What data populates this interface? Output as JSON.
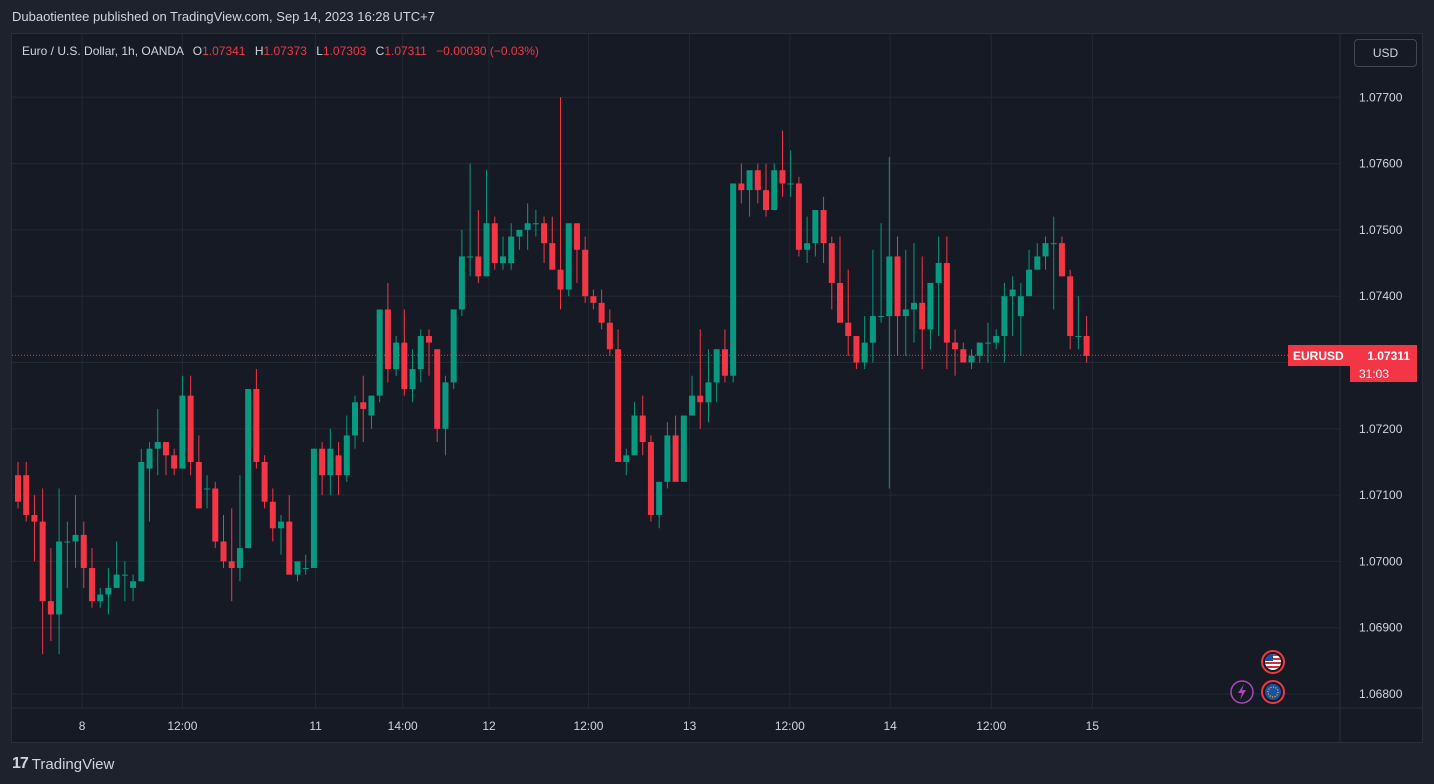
{
  "header": {
    "published": "Dubaotientee published on TradingView.com, Sep 14, 2023 16:28 UTC+7"
  },
  "legend": {
    "symbol": "Euro / U.S. Dollar, 1h, OANDA",
    "o_key": "O",
    "o_val": "1.07341",
    "h_key": "H",
    "h_val": "1.07373",
    "l_key": "L",
    "l_val": "1.07303",
    "c_key": "C",
    "c_val": "1.07311",
    "change": "−0.00030 (−0.03%)"
  },
  "currency_button": "USD",
  "price_label": {
    "symbol": "EURUSD",
    "price": "1.07311",
    "countdown": "31:03"
  },
  "footer": {
    "brand": "TradingView",
    "logo_glyph": "17"
  },
  "colors": {
    "up": "#089981",
    "down": "#f23645",
    "background": "#161a25",
    "grid": "#242832",
    "text": "#d1d4dc"
  },
  "icons": [
    "us-flag-event-icon",
    "lightning-event-icon",
    "eu-flag-event-icon"
  ],
  "chart_data": {
    "type": "candlestick",
    "title": "Euro / U.S. Dollar, 1h, OANDA",
    "ylim": [
      1.0676,
      1.078
    ],
    "y_ticks": [
      "1.07700",
      "1.07600",
      "1.07500",
      "1.07400",
      "1.07300",
      "1.07200",
      "1.07100",
      "1.07000",
      "1.06900",
      "1.06800"
    ],
    "x_ticks": [
      {
        "label": "8",
        "index": 7.8
      },
      {
        "label": "12:00",
        "index": 20
      },
      {
        "label": "11",
        "index": 36.2
      },
      {
        "label": "14:00",
        "index": 46.8
      },
      {
        "label": "12",
        "index": 57.3
      },
      {
        "label": "12:00",
        "index": 69.4
      },
      {
        "label": "13",
        "index": 81.7
      },
      {
        "label": "12:00",
        "index": 93.9
      },
      {
        "label": "14",
        "index": 106.1
      },
      {
        "label": "12:00",
        "index": 118.4
      },
      {
        "label": "15",
        "index": 130.7
      }
    ],
    "last_price": 1.07311,
    "grid": true,
    "candles": [
      [
        1.0713,
        1.0715,
        1.0708,
        1.0709
      ],
      [
        1.0713,
        1.0715,
        1.0706,
        1.0707
      ],
      [
        1.0707,
        1.071,
        1.07,
        1.0706
      ],
      [
        1.0706,
        1.0711,
        1.0686,
        1.0694
      ],
      [
        1.0694,
        1.0702,
        1.0688,
        1.0692
      ],
      [
        1.0692,
        1.0711,
        1.0686,
        1.0703
      ],
      [
        1.0703,
        1.0706,
        1.0696,
        1.0703
      ],
      [
        1.0703,
        1.071,
        1.0699,
        1.0704
      ],
      [
        1.0704,
        1.0706,
        1.0696,
        1.0699
      ],
      [
        1.0699,
        1.0702,
        1.0693,
        1.0694
      ],
      [
        1.0694,
        1.0696,
        1.0693,
        1.0695
      ],
      [
        1.0695,
        1.0699,
        1.0692,
        1.0696
      ],
      [
        1.0696,
        1.0703,
        1.0696,
        1.0698
      ],
      [
        1.0698,
        1.07,
        1.0694,
        1.0698
      ],
      [
        1.0696,
        1.0698,
        1.0694,
        1.0697
      ],
      [
        1.0697,
        1.0717,
        1.0697,
        1.0715
      ],
      [
        1.0714,
        1.0718,
        1.0706,
        1.0717
      ],
      [
        1.0717,
        1.0723,
        1.0713,
        1.0718
      ],
      [
        1.0718,
        1.0718,
        1.0713,
        1.0716
      ],
      [
        1.0716,
        1.0717,
        1.0713,
        1.0714
      ],
      [
        1.0714,
        1.0728,
        1.0714,
        1.0725
      ],
      [
        1.0725,
        1.0728,
        1.0713,
        1.0715
      ],
      [
        1.0715,
        1.0719,
        1.0708,
        1.0708
      ],
      [
        1.0711,
        1.0713,
        1.0708,
        1.0711
      ],
      [
        1.0711,
        1.0712,
        1.0702,
        1.0703
      ],
      [
        1.0703,
        1.0707,
        1.0699,
        1.07
      ],
      [
        1.07,
        1.0708,
        1.0694,
        1.0699
      ],
      [
        1.0699,
        1.0713,
        1.0697,
        1.0702
      ],
      [
        1.0702,
        1.0726,
        1.0702,
        1.0726
      ],
      [
        1.0726,
        1.0729,
        1.0714,
        1.0715
      ],
      [
        1.0715,
        1.0716,
        1.0708,
        1.0709
      ],
      [
        1.0709,
        1.0711,
        1.0703,
        1.0705
      ],
      [
        1.0705,
        1.0707,
        1.0701,
        1.0706
      ],
      [
        1.0706,
        1.071,
        1.0698,
        1.0698
      ],
      [
        1.0698,
        1.07,
        1.0697,
        1.07
      ],
      [
        1.0699,
        1.0701,
        1.0698,
        1.0699
      ],
      [
        1.0699,
        1.0717,
        1.0699,
        1.0717
      ],
      [
        1.0717,
        1.0718,
        1.071,
        1.0713
      ],
      [
        1.0713,
        1.072,
        1.071,
        1.0717
      ],
      [
        1.0716,
        1.0718,
        1.071,
        1.0713
      ],
      [
        1.0713,
        1.0722,
        1.0712,
        1.0719
      ],
      [
        1.0719,
        1.0725,
        1.0717,
        1.0724
      ],
      [
        1.0724,
        1.0728,
        1.0718,
        1.0723
      ],
      [
        1.0722,
        1.0725,
        1.072,
        1.0725
      ],
      [
        1.0725,
        1.0738,
        1.0724,
        1.0738
      ],
      [
        1.0738,
        1.0742,
        1.0727,
        1.0729
      ],
      [
        1.0729,
        1.0734,
        1.0728,
        1.0733
      ],
      [
        1.0733,
        1.0738,
        1.0725,
        1.0726
      ],
      [
        1.0726,
        1.0732,
        1.0724,
        1.0729
      ],
      [
        1.0729,
        1.0735,
        1.0727,
        1.0734
      ],
      [
        1.0734,
        1.0735,
        1.0728,
        1.0733
      ],
      [
        1.0732,
        1.0732,
        1.0718,
        1.072
      ],
      [
        1.072,
        1.0728,
        1.0716,
        1.0727
      ],
      [
        1.0727,
        1.0738,
        1.0726,
        1.0738
      ],
      [
        1.0738,
        1.075,
        1.0737,
        1.0746
      ],
      [
        1.0746,
        1.076,
        1.0743,
        1.0746
      ],
      [
        1.0746,
        1.0753,
        1.0742,
        1.0743
      ],
      [
        1.0743,
        1.0759,
        1.0743,
        1.0751
      ],
      [
        1.0751,
        1.0752,
        1.0744,
        1.0745
      ],
      [
        1.0745,
        1.0749,
        1.0744,
        1.0746
      ],
      [
        1.0745,
        1.0751,
        1.0744,
        1.0749
      ],
      [
        1.0749,
        1.075,
        1.0747,
        1.075
      ],
      [
        1.075,
        1.0754,
        1.0747,
        1.0751
      ],
      [
        1.0751,
        1.0753,
        1.0749,
        1.0751
      ],
      [
        1.0751,
        1.0752,
        1.0745,
        1.0748
      ],
      [
        1.0748,
        1.0752,
        1.0744,
        1.0744
      ],
      [
        1.0744,
        1.077,
        1.0738,
        1.0741
      ],
      [
        1.0741,
        1.0751,
        1.074,
        1.0751
      ],
      [
        1.0751,
        1.0751,
        1.0742,
        1.0747
      ],
      [
        1.0747,
        1.0749,
        1.0739,
        1.074
      ],
      [
        1.074,
        1.0741,
        1.0738,
        1.0739
      ],
      [
        1.0739,
        1.0741,
        1.0735,
        1.0736
      ],
      [
        1.0736,
        1.0738,
        1.0731,
        1.0732
      ],
      [
        1.0732,
        1.0735,
        1.0715,
        1.0715
      ],
      [
        1.0715,
        1.0717,
        1.0713,
        1.0716
      ],
      [
        1.0716,
        1.0724,
        1.0716,
        1.0722
      ],
      [
        1.0722,
        1.0725,
        1.0716,
        1.0718
      ],
      [
        1.0718,
        1.0719,
        1.0706,
        1.0707
      ],
      [
        1.0707,
        1.0712,
        1.0705,
        1.0712
      ],
      [
        1.0712,
        1.0721,
        1.0711,
        1.0719
      ],
      [
        1.0719,
        1.0722,
        1.0713,
        1.0712
      ],
      [
        1.0712,
        1.0721,
        1.0712,
        1.0722
      ],
      [
        1.0722,
        1.0728,
        1.0722,
        1.0725
      ],
      [
        1.0725,
        1.0735,
        1.072,
        1.0724
      ],
      [
        1.0724,
        1.0732,
        1.0721,
        1.0727
      ],
      [
        1.0727,
        1.0732,
        1.0724,
        1.0732
      ],
      [
        1.0732,
        1.0735,
        1.0727,
        1.0728
      ],
      [
        1.0728,
        1.0757,
        1.0727,
        1.0757
      ],
      [
        1.0757,
        1.076,
        1.0754,
        1.0756
      ],
      [
        1.0756,
        1.0758,
        1.0752,
        1.0759
      ],
      [
        1.0759,
        1.076,
        1.0754,
        1.0756
      ],
      [
        1.0756,
        1.076,
        1.0752,
        1.0753
      ],
      [
        1.0753,
        1.076,
        1.0753,
        1.0759
      ],
      [
        1.0759,
        1.0765,
        1.0755,
        1.0757
      ],
      [
        1.0757,
        1.0762,
        1.0755,
        1.0757
      ],
      [
        1.0757,
        1.0758,
        1.0746,
        1.0747
      ],
      [
        1.0747,
        1.0752,
        1.0745,
        1.0748
      ],
      [
        1.0748,
        1.0753,
        1.0746,
        1.0753
      ],
      [
        1.0753,
        1.0755,
        1.0745,
        1.0748
      ],
      [
        1.0748,
        1.0749,
        1.0738,
        1.0742
      ],
      [
        1.0742,
        1.0749,
        1.0737,
        1.0736
      ],
      [
        1.0736,
        1.0744,
        1.0731,
        1.0734
      ],
      [
        1.0734,
        1.0734,
        1.0729,
        1.073
      ],
      [
        1.073,
        1.0737,
        1.0729,
        1.0733
      ],
      [
        1.0733,
        1.0747,
        1.073,
        1.0737
      ],
      [
        1.0737,
        1.0751,
        1.0736,
        1.0737
      ],
      [
        1.0737,
        1.0761,
        1.0711,
        1.0746
      ],
      [
        1.0746,
        1.0749,
        1.0731,
        1.0737
      ],
      [
        1.0737,
        1.0747,
        1.0731,
        1.0738
      ],
      [
        1.0738,
        1.0748,
        1.0733,
        1.0739
      ],
      [
        1.0739,
        1.0746,
        1.0729,
        1.0735
      ],
      [
        1.0735,
        1.0741,
        1.0732,
        1.0742
      ],
      [
        1.0742,
        1.0749,
        1.0734,
        1.0745
      ],
      [
        1.0745,
        1.0749,
        1.0729,
        1.0733
      ],
      [
        1.0733,
        1.0735,
        1.0728,
        1.0732
      ],
      [
        1.0732,
        1.0733,
        1.073,
        1.073
      ],
      [
        1.073,
        1.0732,
        1.0729,
        1.0731
      ],
      [
        1.0731,
        1.0733,
        1.073,
        1.0733
      ],
      [
        1.0733,
        1.0736,
        1.073,
        1.0733
      ],
      [
        1.0733,
        1.0735,
        1.0732,
        1.0734
      ],
      [
        1.0734,
        1.0742,
        1.073,
        1.074
      ],
      [
        1.074,
        1.0743,
        1.0734,
        1.0741
      ],
      [
        1.0737,
        1.0742,
        1.0731,
        1.074
      ],
      [
        1.074,
        1.0747,
        1.074,
        1.0744
      ],
      [
        1.0744,
        1.0748,
        1.0744,
        1.0746
      ],
      [
        1.0746,
        1.0749,
        1.0744,
        1.0748
      ],
      [
        1.0748,
        1.0752,
        1.0738,
        1.0748
      ],
      [
        1.0748,
        1.0749,
        1.0743,
        1.0743
      ],
      [
        1.0743,
        1.0744,
        1.0732,
        1.0734
      ],
      [
        1.0734,
        1.074,
        1.0732,
        1.0734
      ],
      [
        1.0734,
        1.0737,
        1.073,
        1.0731
      ]
    ]
  }
}
